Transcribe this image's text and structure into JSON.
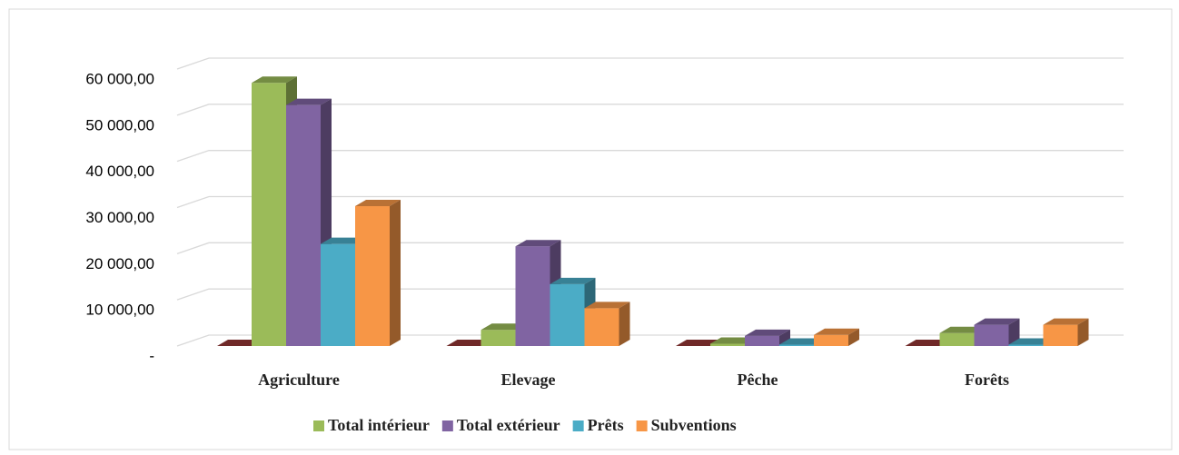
{
  "chart_data": {
    "type": "bar3d",
    "categories": [
      "Agriculture",
      "Elevage",
      "Pêche",
      "Forêts"
    ],
    "series": [
      {
        "color": "#953735",
        "values": [
          0,
          0,
          0,
          0
        ]
      },
      {
        "name": "Total intérieur",
        "color": "#9bbb59",
        "values": [
          57000,
          3500,
          500,
          2800
        ]
      },
      {
        "name": "Total extérieur",
        "color": "#8064a2",
        "values": [
          52200,
          21600,
          2200,
          4600
        ]
      },
      {
        "name": "Prêts",
        "color": "#4bacc6",
        "values": [
          22100,
          13400,
          300,
          300
        ]
      },
      {
        "name": "Subventions",
        "color": "#f79646",
        "values": [
          30300,
          8200,
          2400,
          4600
        ]
      }
    ],
    "ylim": [
      0,
      60000
    ],
    "yticks": [
      {
        "value": 0,
        "label": "-"
      },
      {
        "value": 10000,
        "label": "10 000,00"
      },
      {
        "value": 20000,
        "label": "20 000,00"
      },
      {
        "value": 30000,
        "label": "30 000,00"
      },
      {
        "value": 40000,
        "label": "40 000,00"
      },
      {
        "value": 50000,
        "label": "50 000,00"
      },
      {
        "value": 60000,
        "label": "60 000,00"
      }
    ],
    "grid": true,
    "legend": "bottom"
  }
}
